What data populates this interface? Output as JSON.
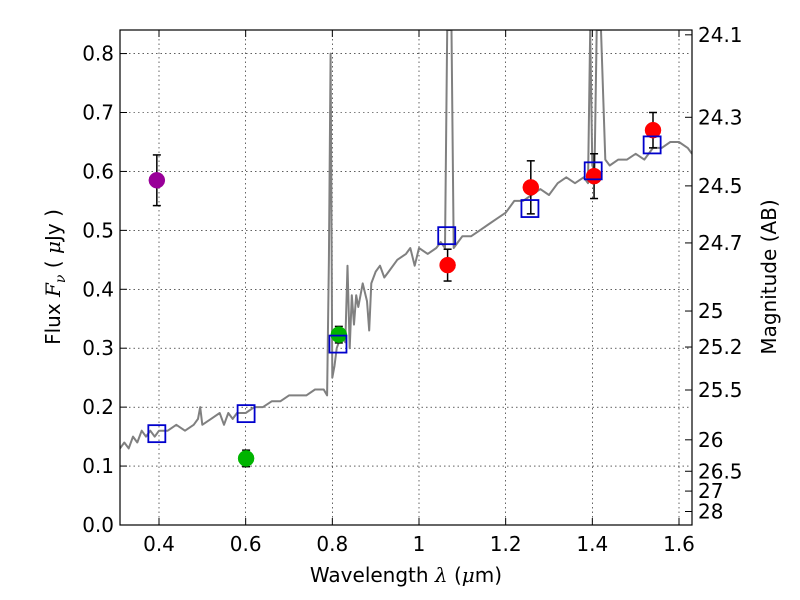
{
  "chart_data": {
    "type": "scatter",
    "xlabel": "Wavelength  λ (μm)",
    "ylabel_left": "Flux  Fν  ( μJy )",
    "ylabel_right": "Magnitude (AB)",
    "xlim": [
      0.31,
      1.63
    ],
    "ylim": [
      0.0,
      0.84
    ],
    "grid": true,
    "x_ticks": [
      0.4,
      0.6,
      0.8,
      1.0,
      1.2,
      1.4,
      1.6
    ],
    "x_tick_labels": [
      "0.4",
      "0.6",
      "0.8",
      "1",
      "1.2",
      "1.4",
      "1.6"
    ],
    "y_ticks": [
      0.0,
      0.1,
      0.2,
      0.3,
      0.4,
      0.5,
      0.6,
      0.7,
      0.8
    ],
    "y_tick_labels": [
      "0.0",
      "0.1",
      "0.2",
      "0.3",
      "0.4",
      "0.5",
      "0.6",
      "0.7",
      "0.8"
    ],
    "mag_ticks": [
      24.1,
      24.3,
      24.5,
      24.7,
      25,
      25.2,
      25.5,
      26,
      26.5,
      27,
      28
    ],
    "mag_tick_labels": [
      "24.1",
      "24.3",
      "24.5",
      "24.7",
      "25",
      "25.2",
      "25.5",
      "26",
      "26.5",
      "27",
      "28"
    ],
    "series": [
      {
        "name": "purple-point",
        "color": "#990099",
        "points": [
          {
            "x": 0.395,
            "y": 0.585,
            "err": 0.043
          }
        ]
      },
      {
        "name": "green-points",
        "color": "#00b400",
        "points": [
          {
            "x": 0.601,
            "y": 0.113,
            "err": 0.014
          },
          {
            "x": 0.815,
            "y": 0.323,
            "err": 0.014
          }
        ]
      },
      {
        "name": "red-points",
        "color": "#ff0000",
        "points": [
          {
            "x": 1.066,
            "y": 0.441,
            "err": 0.027
          },
          {
            "x": 1.258,
            "y": 0.573,
            "err": 0.045
          },
          {
            "x": 1.404,
            "y": 0.592,
            "err": 0.038
          },
          {
            "x": 1.54,
            "y": 0.67,
            "err": 0.03
          }
        ]
      },
      {
        "name": "model-squares",
        "color": "#0000cc",
        "points": [
          {
            "x": 0.395,
            "y": 0.155
          },
          {
            "x": 0.601,
            "y": 0.189
          },
          {
            "x": 0.813,
            "y": 0.307
          },
          {
            "x": 1.064,
            "y": 0.491
          },
          {
            "x": 1.256,
            "y": 0.537
          },
          {
            "x": 1.402,
            "y": 0.601
          },
          {
            "x": 1.538,
            "y": 0.645
          }
        ]
      }
    ],
    "spectrum": {
      "color": "#808080",
      "x": [
        0.31,
        0.32,
        0.33,
        0.34,
        0.35,
        0.36,
        0.37,
        0.38,
        0.39,
        0.4,
        0.42,
        0.44,
        0.46,
        0.48,
        0.49,
        0.495,
        0.5,
        0.52,
        0.54,
        0.55,
        0.56,
        0.57,
        0.58,
        0.6,
        0.62,
        0.64,
        0.66,
        0.68,
        0.7,
        0.72,
        0.74,
        0.76,
        0.78,
        0.788,
        0.792,
        0.796,
        0.8,
        0.805,
        0.81,
        0.82,
        0.83,
        0.835,
        0.84,
        0.845,
        0.85,
        0.855,
        0.86,
        0.87,
        0.88,
        0.885,
        0.89,
        0.9,
        0.91,
        0.92,
        0.93,
        0.95,
        0.97,
        0.98,
        0.99,
        1.0,
        1.02,
        1.04,
        1.05,
        1.06,
        1.065,
        1.068,
        1.072,
        1.075,
        1.08,
        1.09,
        1.1,
        1.12,
        1.14,
        1.16,
        1.18,
        1.2,
        1.22,
        1.24,
        1.26,
        1.28,
        1.3,
        1.32,
        1.34,
        1.36,
        1.38,
        1.39,
        1.395,
        1.4,
        1.405,
        1.41,
        1.415,
        1.42,
        1.43,
        1.44,
        1.46,
        1.48,
        1.5,
        1.52,
        1.54,
        1.56,
        1.58,
        1.6,
        1.62,
        1.63
      ],
      "y": [
        0.13,
        0.14,
        0.13,
        0.15,
        0.14,
        0.16,
        0.15,
        0.16,
        0.15,
        0.16,
        0.16,
        0.17,
        0.16,
        0.17,
        0.18,
        0.2,
        0.17,
        0.18,
        0.19,
        0.17,
        0.19,
        0.18,
        0.19,
        0.19,
        0.2,
        0.2,
        0.21,
        0.21,
        0.22,
        0.22,
        0.22,
        0.23,
        0.23,
        0.22,
        0.45,
        0.8,
        0.25,
        0.27,
        0.3,
        0.32,
        0.31,
        0.44,
        0.3,
        0.39,
        0.34,
        0.39,
        0.37,
        0.41,
        0.38,
        0.33,
        0.41,
        0.43,
        0.44,
        0.42,
        0.43,
        0.45,
        0.46,
        0.47,
        0.44,
        0.47,
        0.46,
        0.47,
        0.48,
        0.47,
        0.84,
        0.84,
        0.84,
        0.84,
        0.47,
        0.48,
        0.49,
        0.49,
        0.5,
        0.51,
        0.52,
        0.53,
        0.55,
        0.55,
        0.56,
        0.57,
        0.56,
        0.58,
        0.59,
        0.58,
        0.59,
        0.58,
        0.84,
        0.61,
        0.6,
        0.84,
        0.84,
        0.84,
        0.62,
        0.61,
        0.62,
        0.62,
        0.63,
        0.62,
        0.64,
        0.64,
        0.65,
        0.65,
        0.64,
        0.63
      ]
    }
  }
}
